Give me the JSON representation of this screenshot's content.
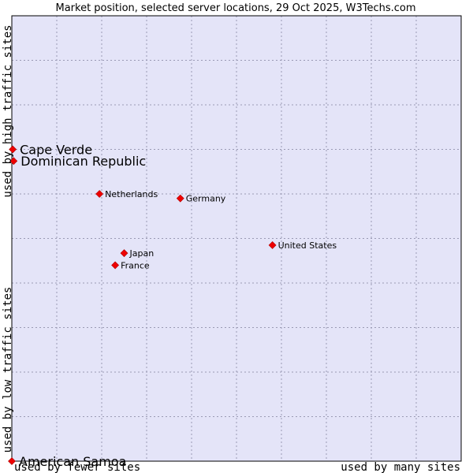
{
  "chart_data": {
    "type": "scatter",
    "title": "Market position, selected server locations, 29 Oct 2025, W3Techs.com",
    "xlabel_low": "used by fewer sites",
    "xlabel_high": "used by many sites",
    "ylabel_low": "used by low traffic sites",
    "ylabel_high": "used by high traffic sites",
    "xlim": [
      0,
      10
    ],
    "ylim": [
      0,
      10
    ],
    "grid": true,
    "colors": {
      "plot_background": "#e4e4f8",
      "grid": "#9a9ab4",
      "border": "#000000",
      "marker": "#ee0000"
    },
    "points": [
      {
        "label": "Cape Verde",
        "x": 0.02,
        "y": 7.0,
        "emphasis": true
      },
      {
        "label": "Dominican Republic",
        "x": 0.04,
        "y": 6.74,
        "emphasis": true
      },
      {
        "label": "Netherlands",
        "x": 1.95,
        "y": 6.0,
        "emphasis": false
      },
      {
        "label": "Germany",
        "x": 3.75,
        "y": 5.9,
        "emphasis": false
      },
      {
        "label": "United States",
        "x": 5.8,
        "y": 4.85,
        "emphasis": false
      },
      {
        "label": "Japan",
        "x": 2.5,
        "y": 4.67,
        "emphasis": false
      },
      {
        "label": "France",
        "x": 2.3,
        "y": 4.4,
        "emphasis": false
      },
      {
        "label": "American Samoa",
        "x": 0.0,
        "y": 0.0,
        "emphasis": true
      }
    ]
  }
}
